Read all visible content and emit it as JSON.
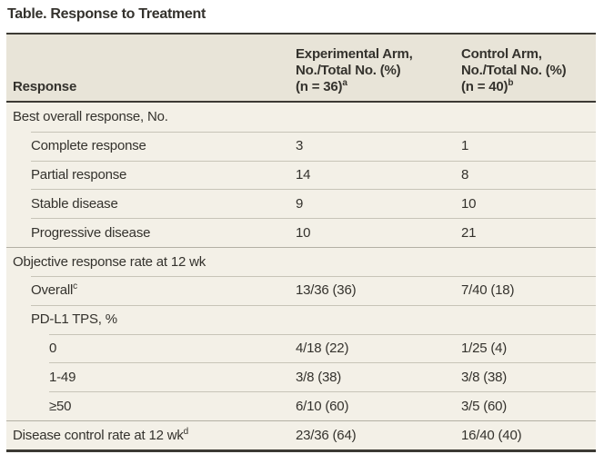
{
  "title": "Table. Response to Treatment",
  "header": {
    "response_label": "Response",
    "experimental": {
      "line1": "Experimental Arm,",
      "line2": "No./Total No. (%)",
      "line3": "(n = 36)",
      "superscript": "a"
    },
    "control": {
      "line1": "Control Arm,",
      "line2": "No./Total No. (%)",
      "line3": "(n = 40)",
      "superscript": "b"
    }
  },
  "rows": [
    {
      "label": "Best overall response, No.",
      "superscript": "",
      "indent": 0,
      "experimental": "",
      "control": ""
    },
    {
      "label": "Complete response",
      "superscript": "",
      "indent": 1,
      "experimental": "3",
      "control": "1"
    },
    {
      "label": "Partial response",
      "superscript": "",
      "indent": 1,
      "experimental": "14",
      "control": "8"
    },
    {
      "label": "Stable disease",
      "superscript": "",
      "indent": 1,
      "experimental": "9",
      "control": "10"
    },
    {
      "label": "Progressive disease",
      "superscript": "",
      "indent": 1,
      "experimental": "10",
      "control": "21"
    },
    {
      "label": "Objective response rate at 12 wk",
      "superscript": "",
      "indent": 0,
      "experimental": "",
      "control": ""
    },
    {
      "label": "Overall",
      "superscript": "c",
      "indent": 1,
      "experimental": "13/36 (36)",
      "control": "7/40 (18)"
    },
    {
      "label": "PD-L1 TPS, %",
      "superscript": "",
      "indent": 1,
      "experimental": "",
      "control": ""
    },
    {
      "label": "0",
      "superscript": "",
      "indent": 2,
      "experimental": "4/18 (22)",
      "control": "1/25 (4)"
    },
    {
      "label": "1-49",
      "superscript": "",
      "indent": 2,
      "experimental": "3/8 (38)",
      "control": "3/8 (38)"
    },
    {
      "label": "≥50",
      "superscript": "",
      "indent": 2,
      "experimental": "6/10 (60)",
      "control": "3/5 (60)"
    },
    {
      "label": "Disease control rate at 12 wk",
      "superscript": "d",
      "indent": 0,
      "experimental": "23/36 (64)",
      "control": "16/40 (40)"
    }
  ],
  "colors": {
    "header_bg": "#e8e4d8",
    "body_bg": "#f3f0e7",
    "rule_dark": "#3c3a34",
    "separator": "#c7c4b8",
    "separator_strong": "#b3b0a4",
    "text": "#34322d",
    "page_bg": "#ffffff"
  }
}
